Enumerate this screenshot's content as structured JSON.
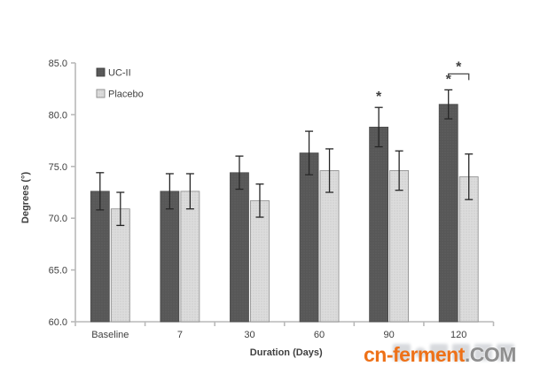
{
  "chart_data": {
    "type": "bar",
    "title": "",
    "categories": [
      "Baseline",
      "7",
      "30",
      "60",
      "90",
      "120"
    ],
    "series": [
      {
        "name": "UC-II",
        "values": [
          72.6,
          72.6,
          74.4,
          76.3,
          78.8,
          81.0
        ],
        "errors": [
          1.8,
          1.7,
          1.6,
          2.1,
          1.9,
          1.4
        ],
        "color": "#575757",
        "dot_color": "#646464",
        "stroke": "#4a4a4a"
      },
      {
        "name": "Placebo",
        "values": [
          70.9,
          72.6,
          71.7,
          74.6,
          74.6,
          74.0
        ],
        "errors": [
          1.6,
          1.7,
          1.6,
          2.1,
          1.9,
          2.2
        ],
        "color": "#dcdcdc",
        "dot_color": "#c6c6c6",
        "stroke": "#8a8a8a"
      }
    ],
    "xlabel": "Duration (Days)",
    "ylabel": "Degrees (°)",
    "ylim": [
      60,
      85
    ],
    "ytick_step": 5,
    "yticks": [
      "85.0",
      "80.0",
      "75.0",
      "70.0",
      "65.0",
      "60.0"
    ],
    "grid": false,
    "legend_position": "top-left-inside",
    "star_symbol": "*",
    "significance": [
      {
        "type": "star",
        "series": 0,
        "category_index": 4
      },
      {
        "type": "star",
        "series": 0,
        "category_index": 5
      },
      {
        "type": "bracket",
        "category_index": 5,
        "between": [
          0,
          1
        ],
        "label": "*"
      }
    ],
    "colors": {
      "axis": "#b9b9b9",
      "tick_text": "#3f3f3f",
      "error_bar": "#262626",
      "star": "#3a3a3a"
    }
  },
  "watermark": {
    "site": "cn-ferment",
    "tld": ".COM",
    "site_color": "#ee7118",
    "tld_color": "#8f8f8f"
  }
}
